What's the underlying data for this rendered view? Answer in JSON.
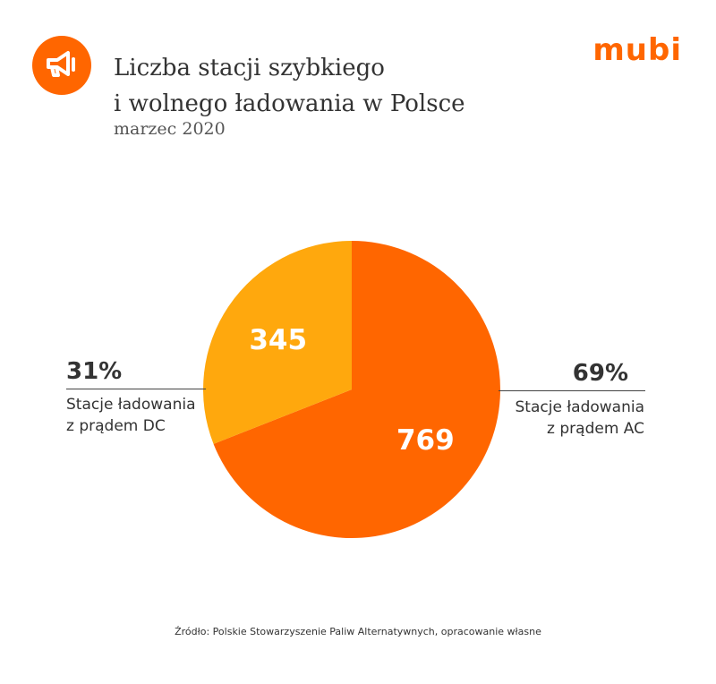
{
  "header": {
    "title_line1": "Liczba stacji szybkiego",
    "title_line2": "i wolnego ładowania w Polsce",
    "subtitle": "marzec 2020",
    "brand": "mubi",
    "icon": "megaphone-icon"
  },
  "colors": {
    "brand": "#FF6600",
    "ac_slice": "#FF6600",
    "dc_slice": "#FFA80D",
    "text": "#333333"
  },
  "chart_data": {
    "type": "pie",
    "title": "Liczba stacji szybkiego i wolnego ładowania w Polsce",
    "subtitle": "marzec 2020",
    "slices": [
      {
        "label": "Stacje ładowania z prądem AC",
        "value": 769,
        "percent": "69%",
        "color": "#FF6600"
      },
      {
        "label": "Stacje ładowania z prądem DC",
        "value": 345,
        "percent": "31%",
        "color": "#FFA80D"
      }
    ]
  },
  "labels": {
    "dc_percent": "31%",
    "dc_line1": "Stacje ładowania",
    "dc_line2": "z prądem DC",
    "ac_percent": "69%",
    "ac_line1": "Stacje ładowania",
    "ac_line2": "z prądem AC"
  },
  "footer": {
    "source": "Źródło: Polskie Stowarzyszenie Paliw Alternatywnych, opracowanie własne"
  }
}
